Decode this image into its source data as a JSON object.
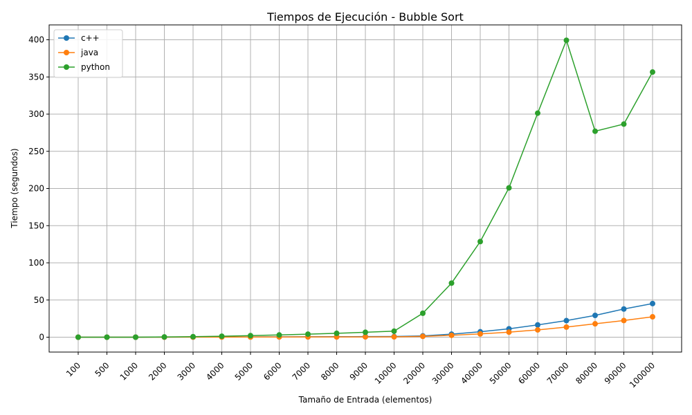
{
  "chart_data": {
    "type": "line",
    "title": "Tiempos de Ejecución - Bubble Sort",
    "xlabel": "Tamaño de Entrada (elementos)",
    "ylabel": "Tiempo (segundos)",
    "categories": [
      "100",
      "500",
      "1000",
      "2000",
      "3000",
      "4000",
      "5000",
      "6000",
      "7000",
      "8000",
      "9000",
      "10000",
      "20000",
      "30000",
      "40000",
      "50000",
      "60000",
      "70000",
      "80000",
      "90000",
      "100000"
    ],
    "ylim": [
      -20,
      420
    ],
    "yticks": [
      0,
      50,
      100,
      150,
      200,
      250,
      300,
      350,
      400
    ],
    "grid": true,
    "legend_position": "top-left",
    "series": [
      {
        "name": "c++",
        "color": "#1f77b4",
        "values": [
          0,
          0,
          0,
          0.1,
          0.2,
          0.3,
          0.4,
          0.5,
          0.6,
          0.7,
          0.8,
          0.9,
          1.8,
          4.1,
          7.3,
          11.3,
          16.5,
          22.3,
          29.3,
          37.9,
          45.2
        ]
      },
      {
        "name": "java",
        "color": "#ff7f0e",
        "values": [
          0,
          0,
          0,
          0.05,
          0.1,
          0.15,
          0.2,
          0.25,
          0.3,
          0.35,
          0.4,
          0.45,
          1.1,
          2.5,
          4.4,
          6.8,
          9.8,
          13.6,
          18.0,
          22.4,
          27.4
        ]
      },
      {
        "name": "python",
        "color": "#2ca02c",
        "values": [
          0,
          0,
          0,
          0.3,
          0.7,
          1.3,
          2.1,
          3.0,
          4.1,
          5.2,
          6.6,
          8.1,
          32.2,
          72.7,
          128.6,
          200.8,
          301.3,
          399.3,
          277.0,
          286.6,
          356.6
        ]
      }
    ]
  }
}
